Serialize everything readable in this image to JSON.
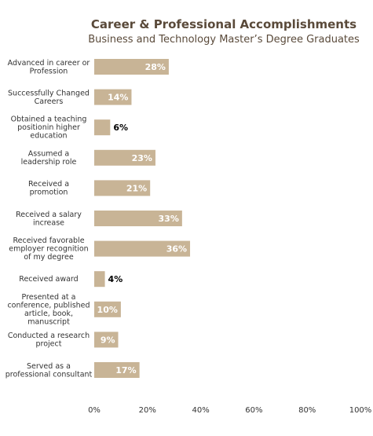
{
  "chart_data": {
    "type": "bar",
    "orientation": "horizontal",
    "title": "Career & Professional Accomplishments",
    "subtitle": "Business and Technology Master’s Degree Graduates",
    "categories": [
      [
        "Advanced in career or",
        "Profession"
      ],
      [
        "Successfully Changed",
        "Careers"
      ],
      [
        "Obtained a  teaching",
        "positionin higher",
        "education"
      ],
      [
        "Assumed a",
        "leadership role"
      ],
      [
        "Received a",
        "promotion"
      ],
      [
        "Received a salary",
        "increase"
      ],
      [
        "Received favorable",
        "employer recognition",
        "of my degree"
      ],
      [
        "Received award"
      ],
      [
        "Presented at a",
        "conference, published",
        "article, book,",
        "manuscript"
      ],
      [
        "Conducted a research",
        "project"
      ],
      [
        "Served as a",
        "professional consultant"
      ]
    ],
    "values": [
      28,
      14,
      6,
      23,
      21,
      33,
      36,
      4,
      10,
      9,
      17
    ],
    "value_labels": [
      "28%",
      "14%",
      "6%",
      "23%",
      "21%",
      "33%",
      "36%",
      "4%",
      "10%",
      "9%",
      "17%"
    ],
    "xlim": [
      0,
      100
    ],
    "xticks": [
      0,
      20,
      40,
      60,
      80,
      100
    ],
    "xtick_labels": [
      "0%",
      "20%",
      "40%",
      "60%",
      "80%",
      "100%"
    ],
    "grid": false,
    "bar_color": "#c8b496"
  }
}
